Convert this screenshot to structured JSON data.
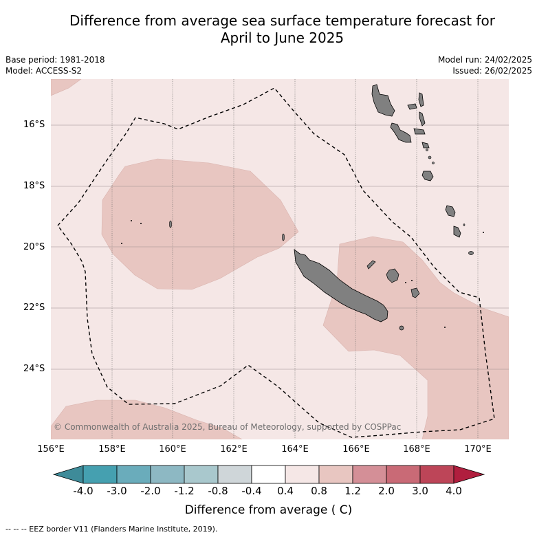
{
  "title_line1": "Difference from average sea surface temperature forecast for",
  "title_line2": "April to June 2025",
  "base_period": "Base period: 1981-2018",
  "model": "Model: ACCESS-S2",
  "model_run": "Model run: 24/02/2025",
  "issued": "Issued: 26/02/2025",
  "latitude_labels": [
    "16°S",
    "18°S",
    "20°S",
    "22°S",
    "24°S"
  ],
  "longitude_labels": [
    "156°E",
    "158°E",
    "160°E",
    "162°E",
    "164°E",
    "166°E",
    "168°E",
    "170°E"
  ],
  "copyright": "© Commonwealth of Australia 2025, Bureau of Meteorology, supported by COSPPac",
  "colorbar": {
    "tick_labels": [
      "-4.0",
      "-3.0",
      "-2.0",
      "-1.2",
      "-0.8",
      "-0.4",
      "0.4",
      "0.8",
      "1.2",
      "2.0",
      "3.0",
      "4.0"
    ],
    "colors": [
      "#3e8b99",
      "#45a0b0",
      "#6aacbb",
      "#8db8c3",
      "#a9c8cd",
      "#cfd6d9",
      "#ffffff",
      "#f5e7e6",
      "#e8c6c1",
      "#d48f97",
      "#c96a76",
      "#bd4558",
      "#b01e3e"
    ],
    "title": "Difference from average ( C)"
  },
  "legend_note": "-- -- -- EEZ border V11 (Flanders Marine Institute, 2019).",
  "colors": {
    "anomaly_0_4_to_0_8": "#f5e7e6",
    "anomaly_0_8_to_1_2": "#e8c6c1",
    "land": "#808080",
    "eez_border": "#000000"
  }
}
